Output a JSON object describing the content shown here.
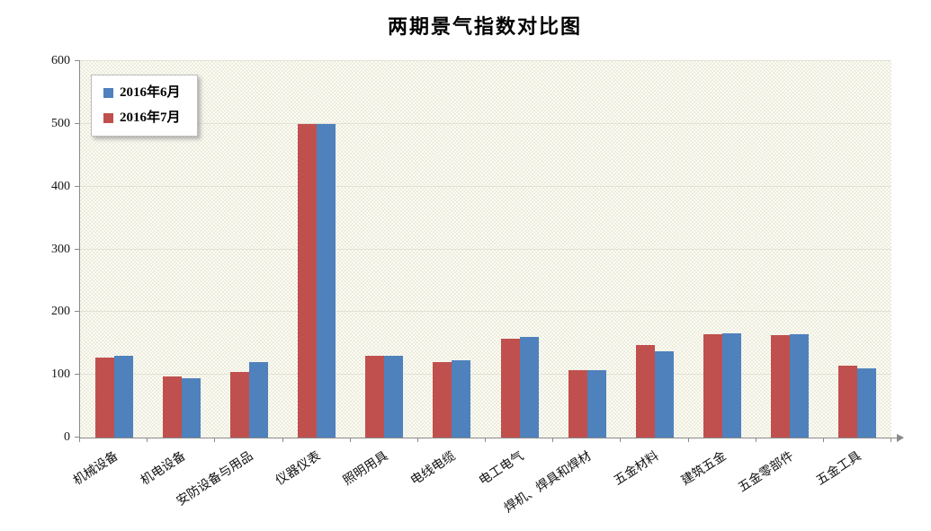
{
  "chart": {
    "title": "两期景气指数对比图"
  },
  "chart_data": {
    "type": "bar",
    "title": "两期景气指数对比图",
    "categories": [
      "机械设备",
      "机电设备",
      "安防设备与用品",
      "仪器仪表",
      "照明用具",
      "电线电缆",
      "电工电气",
      "焊机、焊具和焊材",
      "五金材料",
      "建筑五金",
      "五金零部件",
      "五金工具"
    ],
    "series": [
      {
        "name": "2016年6月",
        "color": "#4F81BD",
        "values": [
          131,
          95,
          120,
          500,
          131,
          123,
          160,
          108,
          138,
          166,
          165,
          111
        ]
      },
      {
        "name": "2016年7月",
        "color": "#C0504D",
        "values": [
          128,
          97,
          104,
          500,
          131,
          121,
          158,
          108,
          147,
          165,
          163,
          114
        ]
      }
    ],
    "series_draw_order": [
      1,
      0
    ],
    "xlabel": "",
    "ylabel": "",
    "ylim": [
      0,
      600
    ],
    "yticks": [
      0,
      100,
      200,
      300,
      400,
      500,
      600
    ],
    "grid": "horizontal",
    "legend_position": "top-left-inside",
    "colors": {
      "plot_background": "#FCFCF4",
      "plot_texture": "#ECECDF",
      "gridline": "#E2E2D5",
      "axis": "#8A8A8A",
      "text": "#000000"
    }
  }
}
